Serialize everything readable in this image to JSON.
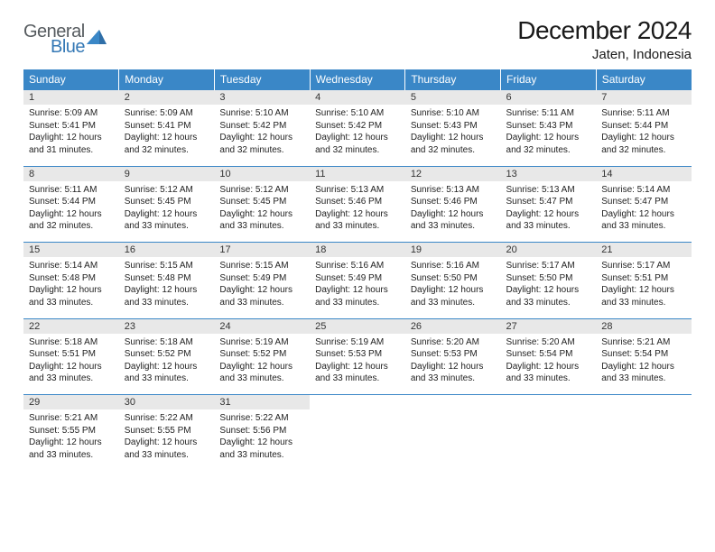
{
  "logo": {
    "word1": "General",
    "word2": "Blue"
  },
  "title": "December 2024",
  "location": "Jaten, Indonesia",
  "columns": [
    "Sunday",
    "Monday",
    "Tuesday",
    "Wednesday",
    "Thursday",
    "Friday",
    "Saturday"
  ],
  "colors": {
    "header_bg": "#3a87c7",
    "header_text": "#ffffff",
    "daynum_bg": "#e8e8e8",
    "grid_line": "#3a87c7",
    "logo_gray": "#565b5f",
    "logo_blue": "#3478b5"
  },
  "fonts": {
    "title_size": 28,
    "location_size": 15,
    "header_cell_size": 12,
    "daynum_size": 11,
    "detail_size": 10
  },
  "weeks": [
    [
      {
        "n": "1",
        "sunrise": "Sunrise: 5:09 AM",
        "sunset": "Sunset: 5:41 PM",
        "day1": "Daylight: 12 hours",
        "day2": "and 31 minutes."
      },
      {
        "n": "2",
        "sunrise": "Sunrise: 5:09 AM",
        "sunset": "Sunset: 5:41 PM",
        "day1": "Daylight: 12 hours",
        "day2": "and 32 minutes."
      },
      {
        "n": "3",
        "sunrise": "Sunrise: 5:10 AM",
        "sunset": "Sunset: 5:42 PM",
        "day1": "Daylight: 12 hours",
        "day2": "and 32 minutes."
      },
      {
        "n": "4",
        "sunrise": "Sunrise: 5:10 AM",
        "sunset": "Sunset: 5:42 PM",
        "day1": "Daylight: 12 hours",
        "day2": "and 32 minutes."
      },
      {
        "n": "5",
        "sunrise": "Sunrise: 5:10 AM",
        "sunset": "Sunset: 5:43 PM",
        "day1": "Daylight: 12 hours",
        "day2": "and 32 minutes."
      },
      {
        "n": "6",
        "sunrise": "Sunrise: 5:11 AM",
        "sunset": "Sunset: 5:43 PM",
        "day1": "Daylight: 12 hours",
        "day2": "and 32 minutes."
      },
      {
        "n": "7",
        "sunrise": "Sunrise: 5:11 AM",
        "sunset": "Sunset: 5:44 PM",
        "day1": "Daylight: 12 hours",
        "day2": "and 32 minutes."
      }
    ],
    [
      {
        "n": "8",
        "sunrise": "Sunrise: 5:11 AM",
        "sunset": "Sunset: 5:44 PM",
        "day1": "Daylight: 12 hours",
        "day2": "and 32 minutes."
      },
      {
        "n": "9",
        "sunrise": "Sunrise: 5:12 AM",
        "sunset": "Sunset: 5:45 PM",
        "day1": "Daylight: 12 hours",
        "day2": "and 33 minutes."
      },
      {
        "n": "10",
        "sunrise": "Sunrise: 5:12 AM",
        "sunset": "Sunset: 5:45 PM",
        "day1": "Daylight: 12 hours",
        "day2": "and 33 minutes."
      },
      {
        "n": "11",
        "sunrise": "Sunrise: 5:13 AM",
        "sunset": "Sunset: 5:46 PM",
        "day1": "Daylight: 12 hours",
        "day2": "and 33 minutes."
      },
      {
        "n": "12",
        "sunrise": "Sunrise: 5:13 AM",
        "sunset": "Sunset: 5:46 PM",
        "day1": "Daylight: 12 hours",
        "day2": "and 33 minutes."
      },
      {
        "n": "13",
        "sunrise": "Sunrise: 5:13 AM",
        "sunset": "Sunset: 5:47 PM",
        "day1": "Daylight: 12 hours",
        "day2": "and 33 minutes."
      },
      {
        "n": "14",
        "sunrise": "Sunrise: 5:14 AM",
        "sunset": "Sunset: 5:47 PM",
        "day1": "Daylight: 12 hours",
        "day2": "and 33 minutes."
      }
    ],
    [
      {
        "n": "15",
        "sunrise": "Sunrise: 5:14 AM",
        "sunset": "Sunset: 5:48 PM",
        "day1": "Daylight: 12 hours",
        "day2": "and 33 minutes."
      },
      {
        "n": "16",
        "sunrise": "Sunrise: 5:15 AM",
        "sunset": "Sunset: 5:48 PM",
        "day1": "Daylight: 12 hours",
        "day2": "and 33 minutes."
      },
      {
        "n": "17",
        "sunrise": "Sunrise: 5:15 AM",
        "sunset": "Sunset: 5:49 PM",
        "day1": "Daylight: 12 hours",
        "day2": "and 33 minutes."
      },
      {
        "n": "18",
        "sunrise": "Sunrise: 5:16 AM",
        "sunset": "Sunset: 5:49 PM",
        "day1": "Daylight: 12 hours",
        "day2": "and 33 minutes."
      },
      {
        "n": "19",
        "sunrise": "Sunrise: 5:16 AM",
        "sunset": "Sunset: 5:50 PM",
        "day1": "Daylight: 12 hours",
        "day2": "and 33 minutes."
      },
      {
        "n": "20",
        "sunrise": "Sunrise: 5:17 AM",
        "sunset": "Sunset: 5:50 PM",
        "day1": "Daylight: 12 hours",
        "day2": "and 33 minutes."
      },
      {
        "n": "21",
        "sunrise": "Sunrise: 5:17 AM",
        "sunset": "Sunset: 5:51 PM",
        "day1": "Daylight: 12 hours",
        "day2": "and 33 minutes."
      }
    ],
    [
      {
        "n": "22",
        "sunrise": "Sunrise: 5:18 AM",
        "sunset": "Sunset: 5:51 PM",
        "day1": "Daylight: 12 hours",
        "day2": "and 33 minutes."
      },
      {
        "n": "23",
        "sunrise": "Sunrise: 5:18 AM",
        "sunset": "Sunset: 5:52 PM",
        "day1": "Daylight: 12 hours",
        "day2": "and 33 minutes."
      },
      {
        "n": "24",
        "sunrise": "Sunrise: 5:19 AM",
        "sunset": "Sunset: 5:52 PM",
        "day1": "Daylight: 12 hours",
        "day2": "and 33 minutes."
      },
      {
        "n": "25",
        "sunrise": "Sunrise: 5:19 AM",
        "sunset": "Sunset: 5:53 PM",
        "day1": "Daylight: 12 hours",
        "day2": "and 33 minutes."
      },
      {
        "n": "26",
        "sunrise": "Sunrise: 5:20 AM",
        "sunset": "Sunset: 5:53 PM",
        "day1": "Daylight: 12 hours",
        "day2": "and 33 minutes."
      },
      {
        "n": "27",
        "sunrise": "Sunrise: 5:20 AM",
        "sunset": "Sunset: 5:54 PM",
        "day1": "Daylight: 12 hours",
        "day2": "and 33 minutes."
      },
      {
        "n": "28",
        "sunrise": "Sunrise: 5:21 AM",
        "sunset": "Sunset: 5:54 PM",
        "day1": "Daylight: 12 hours",
        "day2": "and 33 minutes."
      }
    ],
    [
      {
        "n": "29",
        "sunrise": "Sunrise: 5:21 AM",
        "sunset": "Sunset: 5:55 PM",
        "day1": "Daylight: 12 hours",
        "day2": "and 33 minutes."
      },
      {
        "n": "30",
        "sunrise": "Sunrise: 5:22 AM",
        "sunset": "Sunset: 5:55 PM",
        "day1": "Daylight: 12 hours",
        "day2": "and 33 minutes."
      },
      {
        "n": "31",
        "sunrise": "Sunrise: 5:22 AM",
        "sunset": "Sunset: 5:56 PM",
        "day1": "Daylight: 12 hours",
        "day2": "and 33 minutes."
      },
      null,
      null,
      null,
      null
    ]
  ]
}
